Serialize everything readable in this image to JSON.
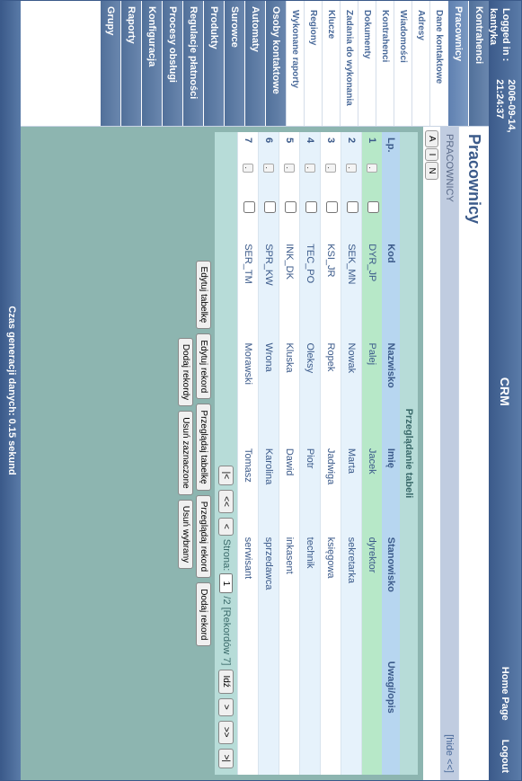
{
  "header": {
    "logged_label": "Logged in :",
    "user": "kantyka",
    "datetime": "2006-09-14,\n21:24:37",
    "app": "CRM",
    "home": "Home Page",
    "logout": "Logout"
  },
  "sidebar": {
    "items": [
      {
        "label": "Kontrahenci",
        "type": "item"
      },
      {
        "label": "Pracownicy",
        "type": "item",
        "active": true
      },
      {
        "label": "Dane kontaktowe",
        "type": "sub"
      },
      {
        "label": "Adresy",
        "type": "sub"
      },
      {
        "label": "Wiadomości",
        "type": "sub"
      },
      {
        "label": "Kontrahenci",
        "type": "sub"
      },
      {
        "label": "Dokumenty",
        "type": "sub"
      },
      {
        "label": "Zadania do wykonania",
        "type": "sub"
      },
      {
        "label": "Klucze",
        "type": "sub"
      },
      {
        "label": "Regiony",
        "type": "sub"
      },
      {
        "label": "Wykonane raporty",
        "type": "sub"
      },
      {
        "label": "Osoby kontaktowe",
        "type": "item"
      },
      {
        "label": "Automaty",
        "type": "item"
      },
      {
        "label": "Surowce",
        "type": "item"
      },
      {
        "label": "Produkty",
        "type": "item"
      },
      {
        "label": "Regulacje płatności",
        "type": "item"
      },
      {
        "label": "Procesy obsługi",
        "type": "item"
      },
      {
        "label": "Konfiguracja",
        "type": "item"
      },
      {
        "label": "Raporty",
        "type": "item"
      },
      {
        "label": "Grupy",
        "type": "item"
      }
    ]
  },
  "content": {
    "title": "Pracownicy",
    "tab": "PRACOWNICY",
    "hide": "[hide <<]",
    "ain": [
      "A",
      "I",
      "N"
    ],
    "grid_title": "Przeglądanie tabeli",
    "columns": [
      "Lp.",
      "",
      "",
      "Kod",
      "Nazwisko",
      "Imię",
      "Stanowisko",
      "Uwagi/opis"
    ],
    "rows": [
      {
        "n": "1",
        "kod": "DYR_JP",
        "nazw": "Palej",
        "imie": "Jacek",
        "stan": "dyrektor",
        "sel": true
      },
      {
        "n": "2",
        "kod": "SEK_MN",
        "nazw": "Nowak",
        "imie": "Marta",
        "stan": "sekretarka"
      },
      {
        "n": "3",
        "kod": "KSI_JR",
        "nazw": "Ropek",
        "imie": "Jadwiga",
        "stan": "księgowa"
      },
      {
        "n": "4",
        "kod": "TEC_PO",
        "nazw": "Oleksy",
        "imie": "Piotr",
        "stan": "technik"
      },
      {
        "n": "5",
        "kod": "INK_DK",
        "nazw": "Kluska",
        "imie": "Dawid",
        "stan": "inkasent"
      },
      {
        "n": "6",
        "kod": "SPR_KW",
        "nazw": "Wrona",
        "imie": "Karolina",
        "stan": "sprzedawca"
      },
      {
        "n": "7",
        "kod": "SER_TM",
        "nazw": "Morawski",
        "imie": "Tomasz",
        "stan": "serwisant"
      }
    ],
    "pager": {
      "first": "|<",
      "prev2": "<<",
      "prev": "<",
      "page_label": "Strona:",
      "page": "1",
      "total": "/2 [Rekordów 7]",
      "go": "Idź",
      "next": ">",
      "next2": ">>",
      "last": ">|"
    },
    "actions": {
      "edit_table": "Edytuj tabelkę",
      "edit_rec": "Edytuj rekord",
      "view_table": "Przeglądaj tabelkę",
      "view_rec": "Przeglądaj rekord",
      "add_rec": "Dodaj rekord",
      "add_recs": "Dodaj rekordy",
      "del_checked": "Usuń zaznaczone",
      "del_sel": "Usuń wybrany"
    }
  },
  "footer": "Czas generacji danych: 0.15 sekund"
}
